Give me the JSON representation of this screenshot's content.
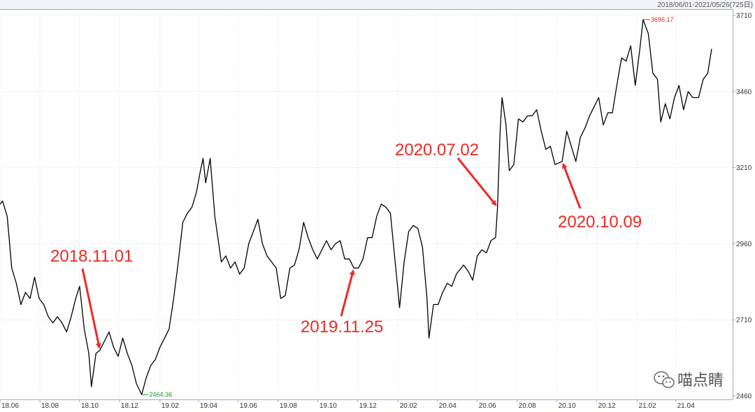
{
  "chart_data": {
    "type": "line",
    "date_range_label": "2018/06/01-2021/05/26(725日)",
    "x_ticks": [
      "18.06",
      "18.08",
      "18.10",
      "18.12",
      "19.02",
      "19.04",
      "19.06",
      "19.08",
      "19.10",
      "19.12",
      "20.02",
      "20.04",
      "20.06",
      "20.08",
      "20.10",
      "20.12",
      "21.02",
      "21.04"
    ],
    "y_ticks": [
      "3710",
      "3460",
      "3210",
      "2960",
      "2710",
      "2460"
    ],
    "ylim": [
      2460,
      3710
    ],
    "xlim": [
      "2018-06-01",
      "2021-05-26"
    ],
    "grid": true,
    "high": {
      "label": "3696.17",
      "date": "2021-02-10",
      "value": 3696.17,
      "color": "#e02020"
    },
    "low": {
      "label": "2464.36",
      "date": "2019-01-04",
      "value": 2464.36,
      "color": "#1a9a2a"
    },
    "line_color": "#000000",
    "annotation_color": "#ee2a24",
    "annotations": [
      {
        "label": "2018.11.01",
        "date": "2018-11-01",
        "value": 2610
      },
      {
        "label": "2019.11.25",
        "date": "2019-11-25",
        "value": 2880
      },
      {
        "label": "2020.07.02",
        "date": "2020-07-02",
        "value": 3080
      },
      {
        "label": "2020.10.09",
        "date": "2020-10-09",
        "value": 3230
      }
    ],
    "series": [
      {
        "points": [
          [
            "2018-06-01",
            3090
          ],
          [
            "2018-06-05",
            3100
          ],
          [
            "2018-06-12",
            3050
          ],
          [
            "2018-06-19",
            2880
          ],
          [
            "2018-06-26",
            2830
          ],
          [
            "2018-07-03",
            2760
          ],
          [
            "2018-07-10",
            2800
          ],
          [
            "2018-07-17",
            2780
          ],
          [
            "2018-07-24",
            2850
          ],
          [
            "2018-07-31",
            2780
          ],
          [
            "2018-08-07",
            2760
          ],
          [
            "2018-08-14",
            2720
          ],
          [
            "2018-08-21",
            2700
          ],
          [
            "2018-08-28",
            2720
          ],
          [
            "2018-09-04",
            2700
          ],
          [
            "2018-09-11",
            2670
          ],
          [
            "2018-09-18",
            2720
          ],
          [
            "2018-09-25",
            2780
          ],
          [
            "2018-10-01",
            2820
          ],
          [
            "2018-10-08",
            2680
          ],
          [
            "2018-10-15",
            2600
          ],
          [
            "2018-10-19",
            2490
          ],
          [
            "2018-10-26",
            2600
          ],
          [
            "2018-11-01",
            2610
          ],
          [
            "2018-11-08",
            2640
          ],
          [
            "2018-11-15",
            2670
          ],
          [
            "2018-11-22",
            2620
          ],
          [
            "2018-11-29",
            2590
          ],
          [
            "2018-12-06",
            2650
          ],
          [
            "2018-12-13",
            2600
          ],
          [
            "2018-12-20",
            2560
          ],
          [
            "2018-12-27",
            2500
          ],
          [
            "2019-01-04",
            2464.36
          ],
          [
            "2019-01-11",
            2520
          ],
          [
            "2019-01-18",
            2560
          ],
          [
            "2019-01-25",
            2580
          ],
          [
            "2019-02-01",
            2620
          ],
          [
            "2019-02-15",
            2680
          ],
          [
            "2019-02-22",
            2780
          ],
          [
            "2019-03-01",
            2900
          ],
          [
            "2019-03-08",
            3030
          ],
          [
            "2019-03-15",
            3060
          ],
          [
            "2019-03-22",
            3080
          ],
          [
            "2019-03-29",
            3130
          ],
          [
            "2019-04-04",
            3200
          ],
          [
            "2019-04-08",
            3240
          ],
          [
            "2019-04-12",
            3160
          ],
          [
            "2019-04-19",
            3240
          ],
          [
            "2019-04-26",
            3050
          ],
          [
            "2019-05-06",
            2900
          ],
          [
            "2019-05-13",
            2920
          ],
          [
            "2019-05-20",
            2880
          ],
          [
            "2019-05-27",
            2900
          ],
          [
            "2019-06-03",
            2860
          ],
          [
            "2019-06-10",
            2880
          ],
          [
            "2019-06-17",
            2960
          ],
          [
            "2019-06-24",
            3000
          ],
          [
            "2019-07-01",
            3040
          ],
          [
            "2019-07-08",
            2960
          ],
          [
            "2019-07-15",
            2920
          ],
          [
            "2019-07-22",
            2900
          ],
          [
            "2019-07-29",
            2880
          ],
          [
            "2019-08-05",
            2780
          ],
          [
            "2019-08-12",
            2790
          ],
          [
            "2019-08-19",
            2880
          ],
          [
            "2019-08-26",
            2890
          ],
          [
            "2019-09-02",
            2940
          ],
          [
            "2019-09-09",
            3030
          ],
          [
            "2019-09-16",
            2980
          ],
          [
            "2019-09-23",
            2940
          ],
          [
            "2019-09-30",
            2910
          ],
          [
            "2019-10-14",
            2970
          ],
          [
            "2019-10-21",
            2940
          ],
          [
            "2019-10-28",
            2960
          ],
          [
            "2019-11-04",
            2970
          ],
          [
            "2019-11-11",
            2910
          ],
          [
            "2019-11-18",
            2910
          ],
          [
            "2019-11-25",
            2880
          ],
          [
            "2019-12-02",
            2880
          ],
          [
            "2019-12-09",
            2910
          ],
          [
            "2019-12-16",
            2980
          ],
          [
            "2019-12-23",
            2980
          ],
          [
            "2019-12-30",
            3050
          ],
          [
            "2020-01-06",
            3090
          ],
          [
            "2020-01-13",
            3080
          ],
          [
            "2020-01-20",
            3060
          ],
          [
            "2020-02-03",
            2750
          ],
          [
            "2020-02-10",
            2900
          ],
          [
            "2020-02-17",
            3000
          ],
          [
            "2020-02-24",
            3020
          ],
          [
            "2020-03-02",
            3010
          ],
          [
            "2020-03-09",
            2950
          ],
          [
            "2020-03-16",
            2780
          ],
          [
            "2020-03-19",
            2650
          ],
          [
            "2020-03-26",
            2760
          ],
          [
            "2020-04-02",
            2760
          ],
          [
            "2020-04-09",
            2800
          ],
          [
            "2020-04-16",
            2830
          ],
          [
            "2020-04-23",
            2820
          ],
          [
            "2020-04-30",
            2860
          ],
          [
            "2020-05-11",
            2890
          ],
          [
            "2020-05-18",
            2870
          ],
          [
            "2020-05-25",
            2840
          ],
          [
            "2020-06-01",
            2920
          ],
          [
            "2020-06-08",
            2940
          ],
          [
            "2020-06-15",
            2930
          ],
          [
            "2020-06-22",
            2970
          ],
          [
            "2020-06-29",
            2980
          ],
          [
            "2020-07-02",
            3080
          ],
          [
            "2020-07-06",
            3330
          ],
          [
            "2020-07-09",
            3440
          ],
          [
            "2020-07-15",
            3350
          ],
          [
            "2020-07-20",
            3200
          ],
          [
            "2020-07-27",
            3220
          ],
          [
            "2020-08-03",
            3370
          ],
          [
            "2020-08-10",
            3360
          ],
          [
            "2020-08-17",
            3380
          ],
          [
            "2020-08-24",
            3380
          ],
          [
            "2020-08-31",
            3400
          ],
          [
            "2020-09-07",
            3330
          ],
          [
            "2020-09-14",
            3270
          ],
          [
            "2020-09-21",
            3280
          ],
          [
            "2020-09-28",
            3220
          ],
          [
            "2020-10-09",
            3230
          ],
          [
            "2020-10-16",
            3330
          ],
          [
            "2020-10-23",
            3280
          ],
          [
            "2020-10-30",
            3230
          ],
          [
            "2020-11-06",
            3310
          ],
          [
            "2020-11-13",
            3340
          ],
          [
            "2020-11-20",
            3380
          ],
          [
            "2020-11-27",
            3410
          ],
          [
            "2020-12-04",
            3440
          ],
          [
            "2020-12-11",
            3350
          ],
          [
            "2020-12-18",
            3390
          ],
          [
            "2020-12-25",
            3390
          ],
          [
            "2020-12-31",
            3470
          ],
          [
            "2021-01-08",
            3570
          ],
          [
            "2021-01-15",
            3560
          ],
          [
            "2021-01-22",
            3610
          ],
          [
            "2021-01-29",
            3480
          ],
          [
            "2021-02-05",
            3600
          ],
          [
            "2021-02-10",
            3696.17
          ],
          [
            "2021-02-18",
            3650
          ],
          [
            "2021-02-25",
            3520
          ],
          [
            "2021-03-04",
            3500
          ],
          [
            "2021-03-09",
            3360
          ],
          [
            "2021-03-16",
            3420
          ],
          [
            "2021-03-23",
            3370
          ],
          [
            "2021-03-30",
            3440
          ],
          [
            "2021-04-06",
            3480
          ],
          [
            "2021-04-13",
            3400
          ],
          [
            "2021-04-20",
            3460
          ],
          [
            "2021-04-27",
            3440
          ],
          [
            "2021-05-06",
            3440
          ],
          [
            "2021-05-13",
            3500
          ],
          [
            "2021-05-20",
            3520
          ],
          [
            "2021-05-26",
            3600
          ]
        ]
      }
    ]
  },
  "watermark": {
    "text": "喵点睛",
    "icon": "wechat-icon"
  }
}
